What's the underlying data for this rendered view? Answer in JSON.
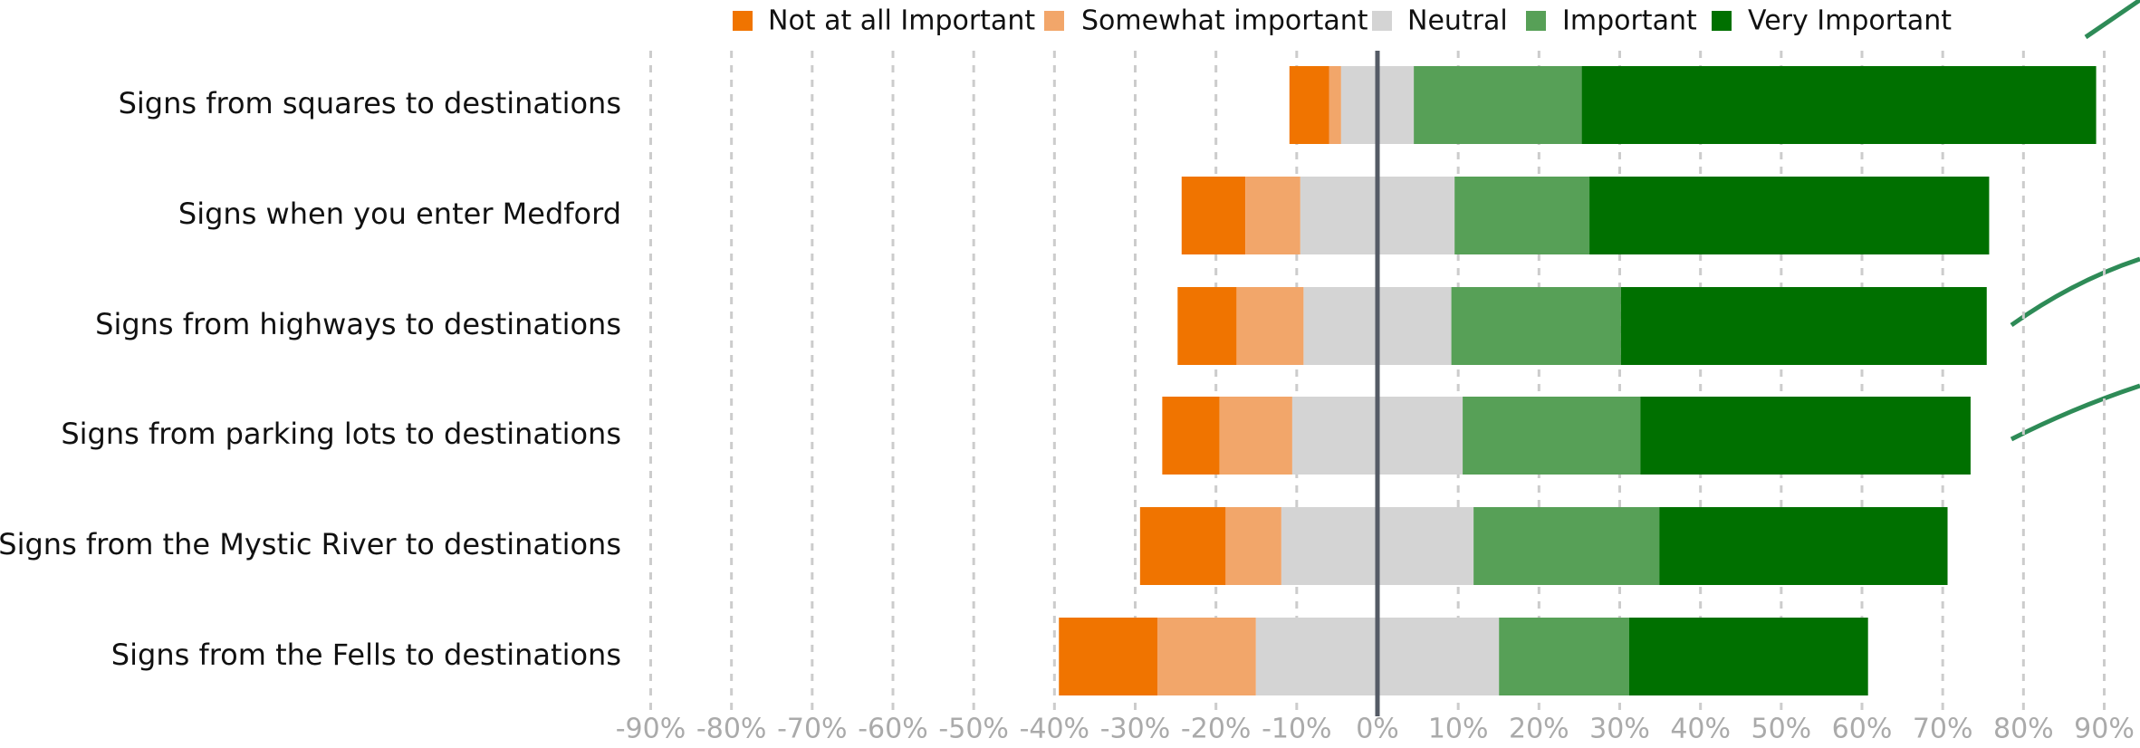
{
  "chart_data": {
    "type": "diverging_bar",
    "categories": [
      "Signs from squares to destinations",
      "Signs when you enter Medford",
      "Signs from highways to destinations",
      "Signs from parking lots to destinations",
      "Signs from the Mystic River to destinations",
      "Signs from the Fells to destinations"
    ],
    "series": [
      {
        "name": "Not at all Important",
        "color": "#f07400",
        "values": [
          4.9,
          7.9,
          7.3,
          7.1,
          10.6,
          12.2
        ]
      },
      {
        "name": "Somewhat important",
        "color": "#f2a66a",
        "values": [
          1.5,
          6.8,
          8.3,
          9.0,
          6.9,
          12.2
        ]
      },
      {
        "name": "Neutral",
        "color": "#d4d4d4",
        "values": [
          9.0,
          19.1,
          18.3,
          21.1,
          23.8,
          30.1
        ]
      },
      {
        "name": "Important",
        "color": "#57a057",
        "values": [
          20.8,
          16.7,
          21.0,
          22.0,
          23.0,
          16.1
        ]
      },
      {
        "name": "Very Important",
        "color": "#007000",
        "values": [
          63.7,
          49.5,
          45.3,
          40.9,
          35.7,
          29.6
        ]
      }
    ],
    "xlim": [
      -90,
      90
    ],
    "xticks": [
      {
        "value": -90,
        "label": "-90%"
      },
      {
        "value": -80,
        "label": "-80%"
      },
      {
        "value": -70,
        "label": "-70%"
      },
      {
        "value": -60,
        "label": "-60%"
      },
      {
        "value": -50,
        "label": "-50%"
      },
      {
        "value": -40,
        "label": "-40%"
      },
      {
        "value": -30,
        "label": "-30%"
      },
      {
        "value": -20,
        "label": "-20%"
      },
      {
        "value": -10,
        "label": "-10%"
      },
      {
        "value": 0,
        "label": "0%"
      },
      {
        "value": 10,
        "label": "10%"
      },
      {
        "value": 20,
        "label": "20%"
      },
      {
        "value": 30,
        "label": "30%"
      },
      {
        "value": 40,
        "label": "40%"
      },
      {
        "value": 50,
        "label": "50%"
      },
      {
        "value": 60,
        "label": "60%"
      },
      {
        "value": 70,
        "label": "70%"
      },
      {
        "value": 80,
        "label": "80%"
      },
      {
        "value": 90,
        "label": "90%"
      }
    ],
    "grid": true
  }
}
